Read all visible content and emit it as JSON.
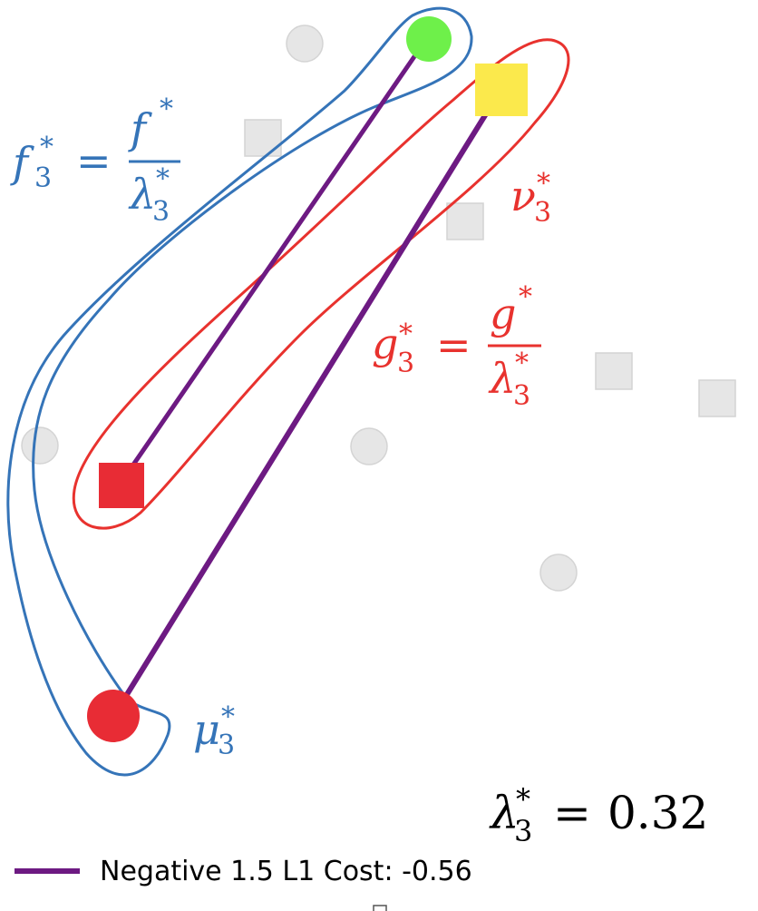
{
  "colors": {
    "blue": "#3574b8",
    "red": "#e8322e",
    "purple": "#6d1a82",
    "green": "#6ef04a",
    "yellow": "#fbe94c",
    "marker_red": "#e82c35",
    "grey_fill": "#e6e6e6",
    "grey_stroke": "#d4d4d4",
    "black": "#000000"
  },
  "labels": {
    "f_lhs": "f",
    "f_sub": "3",
    "f_sup": "*",
    "f_num": "f",
    "f_num_sup": "*",
    "f_den": "λ",
    "f_den_sub": "3",
    "f_den_sup": "*",
    "nu": "ν",
    "nu_sub": "3",
    "nu_sup": "*",
    "g_lhs": "g",
    "g_sub": "3",
    "g_sup": "*",
    "g_num": "g",
    "g_num_sup": "*",
    "g_den": "λ",
    "g_den_sub": "3",
    "g_den_sup": "*",
    "mu": "μ",
    "mu_sub": "3",
    "mu_sup": "*",
    "equals": "=",
    "lambda_sym": "λ",
    "lambda_sub": "3",
    "lambda_sup": "*",
    "lambda_value": "0.32"
  },
  "legend": {
    "label": "Negative 1.5 L1 Cost: -0.56"
  },
  "icons": {
    "source_circle": "circle-marker",
    "target_square": "square-marker",
    "inactive_circle": "grey-circle-marker",
    "inactive_square": "grey-square-marker"
  }
}
